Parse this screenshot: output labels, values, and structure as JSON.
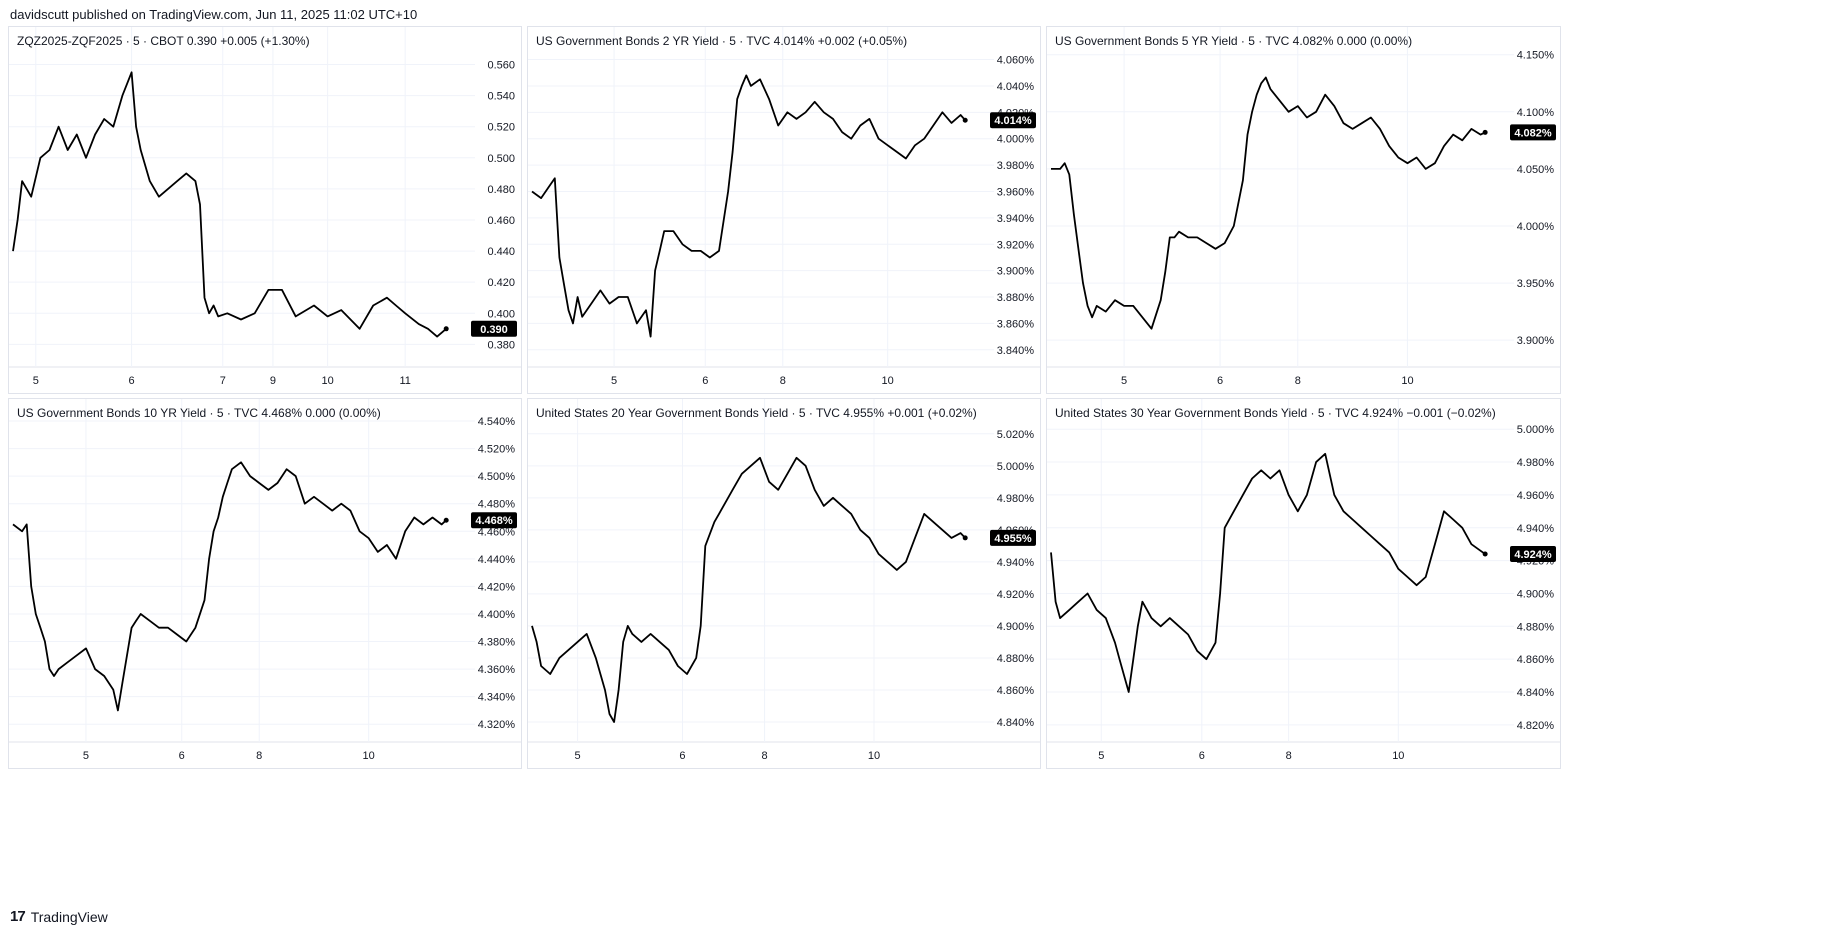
{
  "header": {
    "text": "davidscutt published on TradingView.com, Jun 11, 2025 11:02 UTC+10"
  },
  "footer": {
    "logo": "17",
    "brand": "TradingView"
  },
  "chart_data": [
    {
      "type": "line",
      "legend": "ZQZ2025-ZQF2025 · 5 · CBOT  0.390  +0.005 (+1.30%)",
      "last_label": "0.390",
      "last_value": 0.39,
      "ylim": [
        0.368,
        0.57
      ],
      "yticks": [
        0.38,
        0.4,
        0.42,
        0.44,
        0.46,
        0.48,
        0.5,
        0.52,
        0.54,
        0.56
      ],
      "ytick_labels": [
        "0.380",
        "0.400",
        "0.420",
        "0.440",
        "0.460",
        "0.480",
        "0.500",
        "0.520",
        "0.540",
        "0.560"
      ],
      "xticks": [
        {
          "label": "5",
          "x": 0.05
        },
        {
          "label": "6",
          "x": 0.26
        },
        {
          "label": "7",
          "x": 0.46
        },
        {
          "label": "9",
          "x": 0.57
        },
        {
          "label": "10",
          "x": 0.69
        },
        {
          "label": "11",
          "x": 0.86
        }
      ],
      "series": [
        {
          "x": [
            0,
            0.01,
            0.02,
            0.04,
            0.06,
            0.08,
            0.1,
            0.12,
            0.14,
            0.16,
            0.18,
            0.2,
            0.22,
            0.24,
            0.26,
            0.27,
            0.28,
            0.3,
            0.32,
            0.34,
            0.36,
            0.38,
            0.4,
            0.41,
            0.42,
            0.43,
            0.44,
            0.45,
            0.47,
            0.5,
            0.53,
            0.56,
            0.59,
            0.62,
            0.66,
            0.69,
            0.72,
            0.76,
            0.79,
            0.82,
            0.84,
            0.86,
            0.89,
            0.91,
            0.93,
            0.95
          ],
          "values": [
            0.44,
            0.46,
            0.485,
            0.475,
            0.5,
            0.505,
            0.52,
            0.505,
            0.515,
            0.5,
            0.515,
            0.525,
            0.52,
            0.54,
            0.555,
            0.52,
            0.505,
            0.485,
            0.475,
            0.48,
            0.485,
            0.49,
            0.485,
            0.47,
            0.41,
            0.4,
            0.405,
            0.398,
            0.4,
            0.396,
            0.4,
            0.415,
            0.415,
            0.398,
            0.405,
            0.398,
            0.402,
            0.39,
            0.405,
            0.41,
            0.405,
            0.4,
            0.393,
            0.39,
            0.385,
            0.39
          ]
        }
      ]
    },
    {
      "type": "line",
      "legend": "US Government Bonds 2 YR Yield · 5 · TVC  4.014%  +0.002 (+0.05%)",
      "last_label": "4.014%",
      "last_value": 4.014,
      "ylim": [
        3.83,
        4.068
      ],
      "yticks": [
        3.84,
        3.86,
        3.88,
        3.9,
        3.92,
        3.94,
        3.96,
        3.98,
        4.0,
        4.02,
        4.04,
        4.06
      ],
      "ytick_labels": [
        "3.840%",
        "3.860%",
        "3.880%",
        "3.900%",
        "3.920%",
        "3.940%",
        "3.960%",
        "3.980%",
        "4.000%",
        "4.020%",
        "4.040%",
        "4.060%"
      ],
      "xticks": [
        {
          "label": "5",
          "x": 0.18
        },
        {
          "label": "6",
          "x": 0.38
        },
        {
          "label": "8",
          "x": 0.55
        },
        {
          "label": "10",
          "x": 0.78
        }
      ],
      "series": [
        {
          "x": [
            0,
            0.02,
            0.04,
            0.05,
            0.06,
            0.07,
            0.08,
            0.09,
            0.1,
            0.11,
            0.13,
            0.15,
            0.17,
            0.19,
            0.21,
            0.23,
            0.25,
            0.26,
            0.27,
            0.28,
            0.29,
            0.31,
            0.33,
            0.35,
            0.37,
            0.39,
            0.41,
            0.43,
            0.44,
            0.45,
            0.46,
            0.47,
            0.48,
            0.5,
            0.52,
            0.54,
            0.56,
            0.58,
            0.6,
            0.62,
            0.64,
            0.66,
            0.68,
            0.7,
            0.72,
            0.74,
            0.76,
            0.78,
            0.8,
            0.82,
            0.84,
            0.86,
            0.88,
            0.9,
            0.92,
            0.94,
            0.95
          ],
          "values": [
            3.96,
            3.955,
            3.965,
            3.97,
            3.91,
            3.89,
            3.87,
            3.86,
            3.88,
            3.865,
            3.875,
            3.885,
            3.875,
            3.88,
            3.88,
            3.86,
            3.87,
            3.85,
            3.9,
            3.915,
            3.93,
            3.93,
            3.92,
            3.915,
            3.915,
            3.91,
            3.915,
            3.96,
            3.99,
            4.03,
            4.04,
            4.048,
            4.04,
            4.045,
            4.03,
            4.01,
            4.02,
            4.015,
            4.02,
            4.028,
            4.02,
            4.015,
            4.005,
            4.0,
            4.01,
            4.015,
            4.0,
            3.995,
            3.99,
            3.985,
            3.995,
            4.0,
            4.01,
            4.02,
            4.012,
            4.018,
            4.014
          ]
        }
      ]
    },
    {
      "type": "line",
      "legend": "US Government Bonds 5 YR Yield · 5 · TVC  4.082%  0.000 (0.00%)",
      "last_label": "4.082%",
      "last_value": 4.082,
      "ylim": [
        3.88,
        4.155
      ],
      "yticks": [
        3.9,
        3.95,
        4.0,
        4.05,
        4.1,
        4.15
      ],
      "ytick_labels": [
        "3.900%",
        "3.950%",
        "4.000%",
        "4.050%",
        "4.100%",
        "4.150%"
      ],
      "xticks": [
        {
          "label": "5",
          "x": 0.16
        },
        {
          "label": "6",
          "x": 0.37
        },
        {
          "label": "8",
          "x": 0.54
        },
        {
          "label": "10",
          "x": 0.78
        }
      ],
      "series": [
        {
          "x": [
            0,
            0.02,
            0.03,
            0.04,
            0.05,
            0.06,
            0.07,
            0.08,
            0.09,
            0.1,
            0.12,
            0.14,
            0.16,
            0.18,
            0.2,
            0.22,
            0.24,
            0.25,
            0.26,
            0.27,
            0.28,
            0.3,
            0.32,
            0.34,
            0.36,
            0.38,
            0.4,
            0.42,
            0.43,
            0.44,
            0.45,
            0.46,
            0.47,
            0.48,
            0.5,
            0.52,
            0.54,
            0.56,
            0.58,
            0.6,
            0.62,
            0.64,
            0.66,
            0.68,
            0.7,
            0.72,
            0.74,
            0.76,
            0.78,
            0.8,
            0.82,
            0.84,
            0.86,
            0.88,
            0.9,
            0.92,
            0.94,
            0.95
          ],
          "values": [
            4.05,
            4.05,
            4.055,
            4.045,
            4.01,
            3.98,
            3.95,
            3.93,
            3.92,
            3.93,
            3.925,
            3.935,
            3.93,
            3.93,
            3.92,
            3.91,
            3.935,
            3.96,
            3.99,
            3.99,
            3.995,
            3.99,
            3.99,
            3.985,
            3.98,
            3.985,
            4.0,
            4.04,
            4.08,
            4.1,
            4.115,
            4.125,
            4.13,
            4.12,
            4.11,
            4.1,
            4.105,
            4.095,
            4.1,
            4.115,
            4.105,
            4.09,
            4.085,
            4.09,
            4.095,
            4.085,
            4.07,
            4.06,
            4.055,
            4.06,
            4.05,
            4.055,
            4.07,
            4.08,
            4.075,
            4.085,
            4.08,
            4.082
          ]
        }
      ]
    },
    {
      "type": "line",
      "legend": "US Government Bonds 10 YR Yield · 5 · TVC  4.468%  0.000 (0.00%)",
      "last_label": "4.468%",
      "last_value": 4.468,
      "ylim": [
        4.31,
        4.54
      ],
      "yticks": [
        4.32,
        4.34,
        4.36,
        4.38,
        4.4,
        4.42,
        4.44,
        4.46,
        4.48,
        4.5,
        4.52,
        4.54
      ],
      "ytick_labels": [
        "4.320%",
        "4.340%",
        "4.360%",
        "4.380%",
        "4.400%",
        "4.420%",
        "4.440%",
        "4.460%",
        "4.480%",
        "4.500%",
        "4.520%",
        "4.540%"
      ],
      "xticks": [
        {
          "label": "5",
          "x": 0.16
        },
        {
          "label": "6",
          "x": 0.37
        },
        {
          "label": "8",
          "x": 0.54
        },
        {
          "label": "10",
          "x": 0.78
        }
      ],
      "series": [
        {
          "x": [
            0,
            0.02,
            0.03,
            0.04,
            0.05,
            0.06,
            0.07,
            0.08,
            0.09,
            0.1,
            0.12,
            0.14,
            0.16,
            0.18,
            0.2,
            0.22,
            0.23,
            0.24,
            0.25,
            0.26,
            0.27,
            0.28,
            0.3,
            0.32,
            0.34,
            0.36,
            0.38,
            0.4,
            0.42,
            0.43,
            0.44,
            0.45,
            0.46,
            0.47,
            0.48,
            0.5,
            0.52,
            0.54,
            0.56,
            0.58,
            0.6,
            0.62,
            0.64,
            0.66,
            0.68,
            0.7,
            0.72,
            0.74,
            0.76,
            0.78,
            0.8,
            0.82,
            0.84,
            0.86,
            0.88,
            0.9,
            0.92,
            0.94,
            0.95
          ],
          "values": [
            4.465,
            4.46,
            4.465,
            4.42,
            4.4,
            4.39,
            4.38,
            4.36,
            4.355,
            4.36,
            4.365,
            4.37,
            4.375,
            4.36,
            4.355,
            4.345,
            4.33,
            4.35,
            4.37,
            4.39,
            4.395,
            4.4,
            4.395,
            4.39,
            4.39,
            4.385,
            4.38,
            4.39,
            4.41,
            4.44,
            4.46,
            4.47,
            4.485,
            4.495,
            4.505,
            4.51,
            4.5,
            4.495,
            4.49,
            4.495,
            4.505,
            4.5,
            4.48,
            4.485,
            4.48,
            4.475,
            4.48,
            4.475,
            4.46,
            4.455,
            4.445,
            4.45,
            4.44,
            4.46,
            4.47,
            4.465,
            4.47,
            4.465,
            4.468
          ]
        }
      ]
    },
    {
      "type": "line",
      "legend": "United States 20 Year Government Bonds Yield · 5 · TVC  4.955%  +0.001 (+0.02%)",
      "last_label": "4.955%",
      "last_value": 4.955,
      "ylim": [
        4.83,
        5.028
      ],
      "yticks": [
        4.84,
        4.86,
        4.88,
        4.9,
        4.92,
        4.94,
        4.96,
        4.98,
        5.0,
        5.02
      ],
      "ytick_labels": [
        "4.840%",
        "4.860%",
        "4.880%",
        "4.900%",
        "4.920%",
        "4.940%",
        "4.960%",
        "4.980%",
        "5.000%",
        "5.020%"
      ],
      "xticks": [
        {
          "label": "5",
          "x": 0.1
        },
        {
          "label": "6",
          "x": 0.33
        },
        {
          "label": "8",
          "x": 0.51
        },
        {
          "label": "10",
          "x": 0.75
        }
      ],
      "series": [
        {
          "x": [
            0,
            0.01,
            0.02,
            0.04,
            0.06,
            0.08,
            0.1,
            0.12,
            0.14,
            0.15,
            0.16,
            0.17,
            0.18,
            0.19,
            0.2,
            0.21,
            0.22,
            0.24,
            0.26,
            0.28,
            0.3,
            0.32,
            0.34,
            0.36,
            0.37,
            0.38,
            0.4,
            0.41,
            0.42,
            0.44,
            0.46,
            0.48,
            0.5,
            0.52,
            0.54,
            0.56,
            0.58,
            0.6,
            0.62,
            0.64,
            0.66,
            0.68,
            0.7,
            0.72,
            0.74,
            0.76,
            0.78,
            0.8,
            0.82,
            0.84,
            0.86,
            0.88,
            0.9,
            0.92,
            0.94,
            0.95
          ],
          "values": [
            4.9,
            4.89,
            4.875,
            4.87,
            4.88,
            4.885,
            4.89,
            4.895,
            4.88,
            4.87,
            4.86,
            4.845,
            4.84,
            4.86,
            4.89,
            4.9,
            4.895,
            4.89,
            4.895,
            4.89,
            4.885,
            4.875,
            4.87,
            4.88,
            4.9,
            4.95,
            4.965,
            4.97,
            4.975,
            4.985,
            4.995,
            5.0,
            5.005,
            4.99,
            4.985,
            4.995,
            5.005,
            5.0,
            4.985,
            4.975,
            4.98,
            4.975,
            4.97,
            4.96,
            4.955,
            4.945,
            4.94,
            4.935,
            4.94,
            4.955,
            4.97,
            4.965,
            4.96,
            4.955,
            4.958,
            4.955
          ]
        }
      ]
    },
    {
      "type": "line",
      "legend": "United States 30 Year Government Bonds Yield · 5 · TVC  4.924%  −0.001 (−0.02%)",
      "last_label": "4.924%",
      "last_value": 4.924,
      "ylim": [
        4.812,
        5.005
      ],
      "yticks": [
        4.82,
        4.84,
        4.86,
        4.88,
        4.9,
        4.92,
        4.94,
        4.96,
        4.98,
        5.0
      ],
      "ytick_labels": [
        "4.820%",
        "4.840%",
        "4.860%",
        "4.880%",
        "4.900%",
        "4.920%",
        "4.940%",
        "4.960%",
        "4.980%",
        "5.000%"
      ],
      "xticks": [
        {
          "label": "5",
          "x": 0.11
        },
        {
          "label": "6",
          "x": 0.33
        },
        {
          "label": "8",
          "x": 0.52
        },
        {
          "label": "10",
          "x": 0.76
        }
      ],
      "series": [
        {
          "x": [
            0,
            0.01,
            0.02,
            0.04,
            0.06,
            0.08,
            0.1,
            0.12,
            0.14,
            0.15,
            0.16,
            0.17,
            0.18,
            0.19,
            0.2,
            0.21,
            0.22,
            0.24,
            0.26,
            0.28,
            0.3,
            0.32,
            0.34,
            0.36,
            0.37,
            0.38,
            0.4,
            0.41,
            0.42,
            0.44,
            0.46,
            0.48,
            0.5,
            0.52,
            0.54,
            0.56,
            0.58,
            0.6,
            0.62,
            0.64,
            0.66,
            0.68,
            0.7,
            0.72,
            0.74,
            0.76,
            0.78,
            0.8,
            0.82,
            0.84,
            0.86,
            0.88,
            0.9,
            0.92,
            0.94,
            0.95
          ],
          "values": [
            4.925,
            4.895,
            4.885,
            4.89,
            4.895,
            4.9,
            4.89,
            4.885,
            4.87,
            4.86,
            4.85,
            4.84,
            4.86,
            4.88,
            4.895,
            4.89,
            4.885,
            4.88,
            4.885,
            4.88,
            4.875,
            4.865,
            4.86,
            4.87,
            4.9,
            4.94,
            4.95,
            4.955,
            4.96,
            4.97,
            4.975,
            4.97,
            4.975,
            4.96,
            4.95,
            4.96,
            4.98,
            4.985,
            4.96,
            4.95,
            4.945,
            4.94,
            4.935,
            4.93,
            4.925,
            4.915,
            4.91,
            4.905,
            4.91,
            4.93,
            4.95,
            4.945,
            4.94,
            4.93,
            4.926,
            4.924
          ]
        }
      ]
    }
  ]
}
